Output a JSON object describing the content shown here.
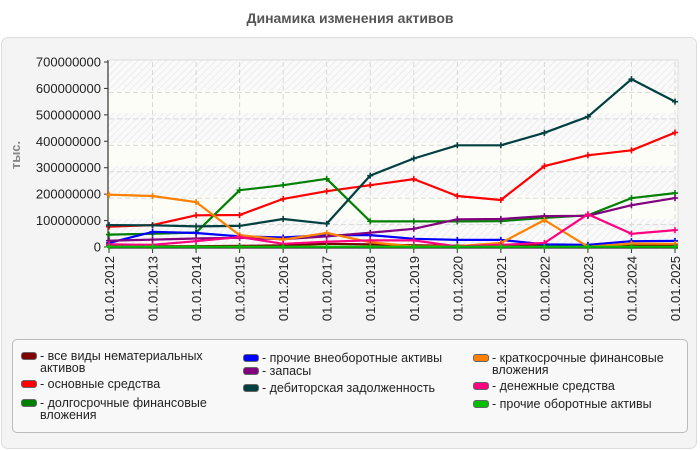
{
  "header": {
    "title": "Динамика изменения активов"
  },
  "chart_data": {
    "type": "line",
    "title": "Динамика изменения активов",
    "xlabel": "",
    "ylabel": "тыс.",
    "ylim": [
      0,
      700000000
    ],
    "yticks": [
      "0",
      "100000000",
      "200000000",
      "300000000",
      "400000000",
      "500000000",
      "600000000",
      "700000000"
    ],
    "grid": true,
    "legend_position": "bottom",
    "categories": [
      "01.01.2012",
      "01.01.2013",
      "01.01.2014",
      "01.01.2015",
      "01.01.2016",
      "01.01.2017",
      "01.01.2018",
      "01.01.2019",
      "01.01.2020",
      "01.01.2021",
      "01.01.2022",
      "01.01.2023",
      "01.01.2024",
      "01.01.2025"
    ],
    "series": [
      {
        "name": "все виды нематериальных активов",
        "color": "#800000",
        "values": [
          3000000,
          3000000,
          3000000,
          4000000,
          6000000,
          12000000,
          10000000,
          6000000,
          5000000,
          6000000,
          6000000,
          5000000,
          6000000,
          8000000
        ]
      },
      {
        "name": "основные средства",
        "color": "#ff0000",
        "values": [
          77000000,
          83000000,
          120000000,
          121000000,
          182000000,
          211000000,
          234000000,
          257000000,
          193000000,
          178000000,
          306000000,
          347000000,
          366000000,
          433000000
        ]
      },
      {
        "name": "долгосрочные финансовые вложения",
        "color": "#008000",
        "values": [
          47000000,
          50000000,
          55000000,
          215000000,
          234000000,
          258000000,
          97000000,
          97000000,
          97000000,
          98000000,
          110000000,
          120000000,
          185000000,
          204000000
        ]
      },
      {
        "name": "прочие внеоборотные активы",
        "color": "#0000ff",
        "values": [
          15000000,
          57000000,
          53000000,
          40000000,
          36000000,
          45000000,
          45000000,
          31000000,
          27000000,
          27000000,
          10000000,
          8000000,
          22000000,
          23000000
        ]
      },
      {
        "name": "запасы",
        "color": "#800080",
        "values": [
          24000000,
          28000000,
          32000000,
          35000000,
          30000000,
          40000000,
          54000000,
          69000000,
          105000000,
          106000000,
          117000000,
          118000000,
          158000000,
          185000000
        ]
      },
      {
        "name": "дебиторская задолженность",
        "color": "#004040",
        "values": [
          83000000,
          82000000,
          78000000,
          80000000,
          106000000,
          88000000,
          270000000,
          335000000,
          385000000,
          385000000,
          432000000,
          493000000,
          635000000,
          550000000
        ]
      },
      {
        "name": "краткосрочные финансовые вложения",
        "color": "#ff8000",
        "values": [
          198000000,
          193000000,
          170000000,
          45000000,
          28000000,
          53000000,
          18000000,
          2000000,
          3000000,
          15000000,
          102000000,
          1000000,
          13000000,
          12000000
        ]
      },
      {
        "name": "денежные средства",
        "color": "#ff0080",
        "values": [
          10000000,
          8000000,
          22000000,
          38000000,
          12000000,
          20000000,
          25000000,
          25000000,
          2000000,
          8000000,
          15000000,
          124000000,
          50000000,
          64000000
        ]
      },
      {
        "name": "прочие оборотные активы",
        "color": "#00c000",
        "values": [
          1000000,
          1000000,
          1000000,
          1000000,
          1000000,
          1000000,
          1000000,
          1000000,
          1000000,
          1000000,
          1000000,
          1000000,
          1000000,
          1000000
        ]
      }
    ]
  },
  "legend": {
    "items": [
      {
        "label": "- все виды нематериальных\nактивов",
        "color": "#800000"
      },
      {
        "label": "- основные средства",
        "color": "#ff0000"
      },
      {
        "label": "- долгосрочные финансовые\nвложения",
        "color": "#008000"
      },
      {
        "label": "- прочие внеоборотные активы",
        "color": "#0000ff"
      },
      {
        "label": "- запасы",
        "color": "#800080"
      },
      {
        "label": "- дебиторская задолженность",
        "color": "#004040"
      },
      {
        "label": "- краткосрочные финансовые\nвложения",
        "color": "#ff8000"
      },
      {
        "label": "- денежные средства",
        "color": "#ff0080"
      },
      {
        "label": "- прочие оборотные активы",
        "color": "#00c000"
      }
    ]
  }
}
